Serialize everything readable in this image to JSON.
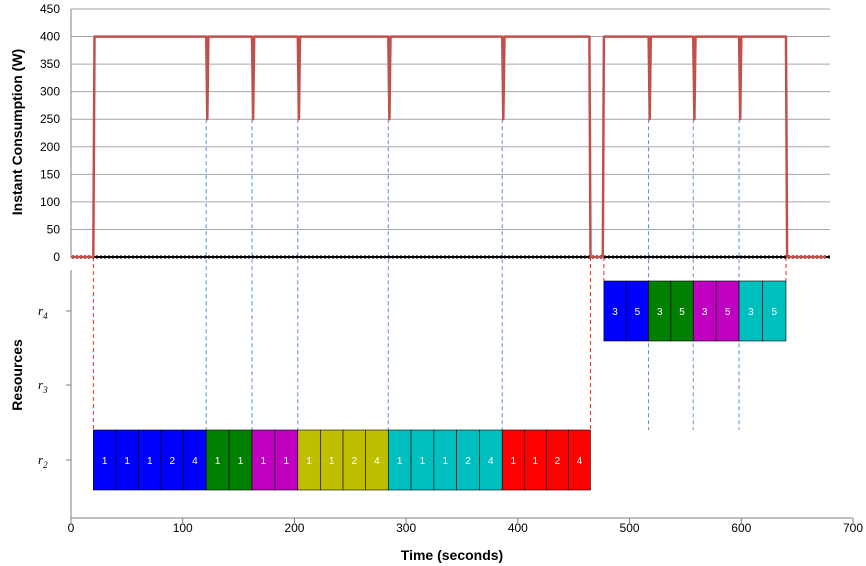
{
  "chart_data": [
    {
      "type": "line",
      "ylabel": "Instant Consumption (W)",
      "yticks": [
        "0",
        "50",
        "100",
        "150",
        "200",
        "250",
        "300",
        "350",
        "400",
        "450"
      ],
      "ylim": [
        0,
        450
      ],
      "xlim": [
        0,
        680
      ],
      "grid": true,
      "color": "#c0504d",
      "points": [
        [
          0,
          0
        ],
        [
          20,
          0
        ],
        [
          21,
          400
        ],
        [
          121,
          400
        ],
        [
          122,
          250
        ],
        [
          123,
          400
        ],
        [
          162,
          400
        ],
        [
          163,
          250
        ],
        [
          164,
          400
        ],
        [
          203,
          400
        ],
        [
          204,
          250
        ],
        [
          205,
          400
        ],
        [
          284,
          400
        ],
        [
          285,
          250
        ],
        [
          286,
          400
        ],
        [
          386,
          400
        ],
        [
          387,
          250
        ],
        [
          388,
          400
        ],
        [
          464,
          400
        ],
        [
          465,
          0
        ],
        [
          476,
          0
        ],
        [
          477,
          400
        ],
        [
          517,
          400
        ],
        [
          518,
          250
        ],
        [
          519,
          400
        ],
        [
          557,
          400
        ],
        [
          558,
          250
        ],
        [
          559,
          400
        ],
        [
          598,
          400
        ],
        [
          599,
          250
        ],
        [
          600,
          400
        ],
        [
          640,
          400
        ],
        [
          641,
          0
        ],
        [
          676,
          0
        ]
      ]
    },
    {
      "type": "gantt",
      "xlabel": "Time (seconds)",
      "ylabel": "Resources",
      "xticks": [
        "0",
        "100",
        "200",
        "300",
        "400",
        "500",
        "600",
        "700"
      ],
      "xlim": [
        0,
        700
      ],
      "resources": [
        {
          "base": "r",
          "sub": "4"
        },
        {
          "base": "r",
          "sub": "3"
        },
        {
          "base": "r",
          "sub": "2"
        }
      ],
      "groups": [
        {
          "resource": 2,
          "start": 20,
          "end": 121,
          "color": "#0000ff",
          "labels": [
            "1",
            "1",
            "1",
            "2",
            "4"
          ]
        },
        {
          "resource": 2,
          "start": 121,
          "end": 162,
          "color": "#008000",
          "labels": [
            "1",
            "1"
          ]
        },
        {
          "resource": 2,
          "start": 162,
          "end": 203,
          "color": "#c000c0",
          "labels": [
            "1",
            "1"
          ]
        },
        {
          "resource": 2,
          "start": 203,
          "end": 284,
          "color": "#bfbf00",
          "labels": [
            "1",
            "1",
            "2",
            "4"
          ]
        },
        {
          "resource": 2,
          "start": 284,
          "end": 386,
          "color": "#00bfbf",
          "labels": [
            "1",
            "1",
            "1",
            "2",
            "4"
          ]
        },
        {
          "resource": 2,
          "start": 386,
          "end": 465,
          "color": "#ff0000",
          "labels": [
            "1",
            "1",
            "2",
            "4"
          ]
        },
        {
          "resource": 4,
          "start": 477,
          "end": 517,
          "color": "#0000ff",
          "labels": [
            "3",
            "5"
          ]
        },
        {
          "resource": 4,
          "start": 517,
          "end": 557,
          "color": "#008000",
          "labels": [
            "3",
            "5"
          ]
        },
        {
          "resource": 4,
          "start": 557,
          "end": 598,
          "color": "#c000c0",
          "labels": [
            "3",
            "5"
          ]
        },
        {
          "resource": 4,
          "start": 598,
          "end": 640,
          "color": "#00bfbf",
          "labels": [
            "3",
            "5"
          ]
        }
      ],
      "blue_guides": [
        121,
        162,
        203,
        284,
        386,
        517,
        557,
        598
      ],
      "red_guides": [
        20,
        465,
        477,
        640
      ]
    }
  ]
}
